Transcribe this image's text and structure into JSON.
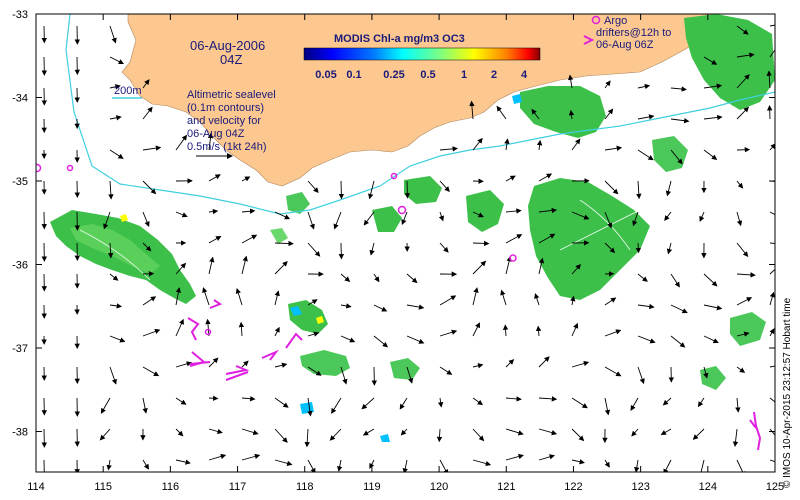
{
  "map": {
    "date_line1": "06-Aug-2006",
    "date_line2": "04Z",
    "colorbar": {
      "title": "MODIS Chl-a mg/m3 OC3",
      "ticks": [
        "0.05",
        "0.1",
        "0.25",
        "0.5",
        "1",
        "2",
        "4"
      ],
      "colors": [
        "#00007f",
        "#0000ff",
        "#007fff",
        "#00ffff",
        "#7fff7f",
        "#ffff00",
        "#ff7f00",
        "#ff0000",
        "#7f0000"
      ]
    },
    "legend_200m": "200m",
    "annotation": {
      "line1": "Altimetric sealevel",
      "line2": "(0.1m contours)",
      "line3": "and velocity for",
      "line4": "06-Aug 04Z",
      "line5": "0.5m/s (1kt 24h)"
    },
    "argo": {
      "line1": "Argo",
      "line2": "drifters@12h to",
      "line3": "06-Aug 06Z"
    },
    "credit": "© IMOS 10-Apr-2015 23:12:57 Hobart time",
    "x_ticks": [
      "114",
      "115",
      "116",
      "117",
      "118",
      "119",
      "120",
      "121",
      "122",
      "123",
      "124",
      "125"
    ],
    "y_ticks": [
      "-33",
      "-34",
      "-35",
      "-36",
      "-37",
      "-38"
    ],
    "colors": {
      "land": "#fcc88f",
      "isobath": "#40d0e0",
      "argo": "#e020e0",
      "chl_green": "#3cc04a",
      "text": "#1a1a7a"
    }
  }
}
